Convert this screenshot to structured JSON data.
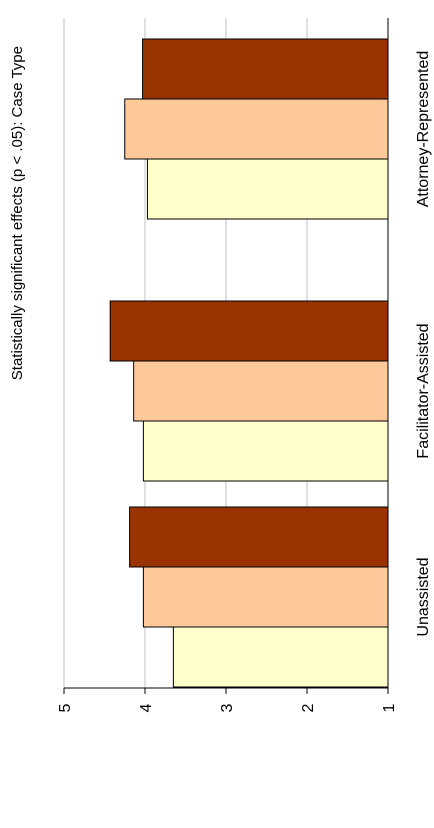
{
  "chart_data": {
    "type": "bar",
    "orientation": "vertical",
    "rotation": "rotated 90 degrees clockwise",
    "title": "Statistically significant effects (p < .05):  Case Type",
    "xlabel": "",
    "ylabel": "",
    "categories": [
      "Unassisted",
      "Facilitator-Assisted",
      "Attorney-Represented"
    ],
    "series": [
      {
        "values": [
          3.65,
          4.02,
          3.97
        ],
        "color": "#ffffcc"
      },
      {
        "values": [
          4.02,
          4.14,
          4.25
        ],
        "color": "#fdc99b"
      },
      {
        "values": [
          4.19,
          4.43,
          4.03
        ],
        "color": "#993300"
      }
    ],
    "ylim": [
      1,
      5
    ],
    "yticks": [
      "1",
      "2",
      "3",
      "4",
      "5"
    ],
    "grid": true,
    "legend": "none"
  }
}
